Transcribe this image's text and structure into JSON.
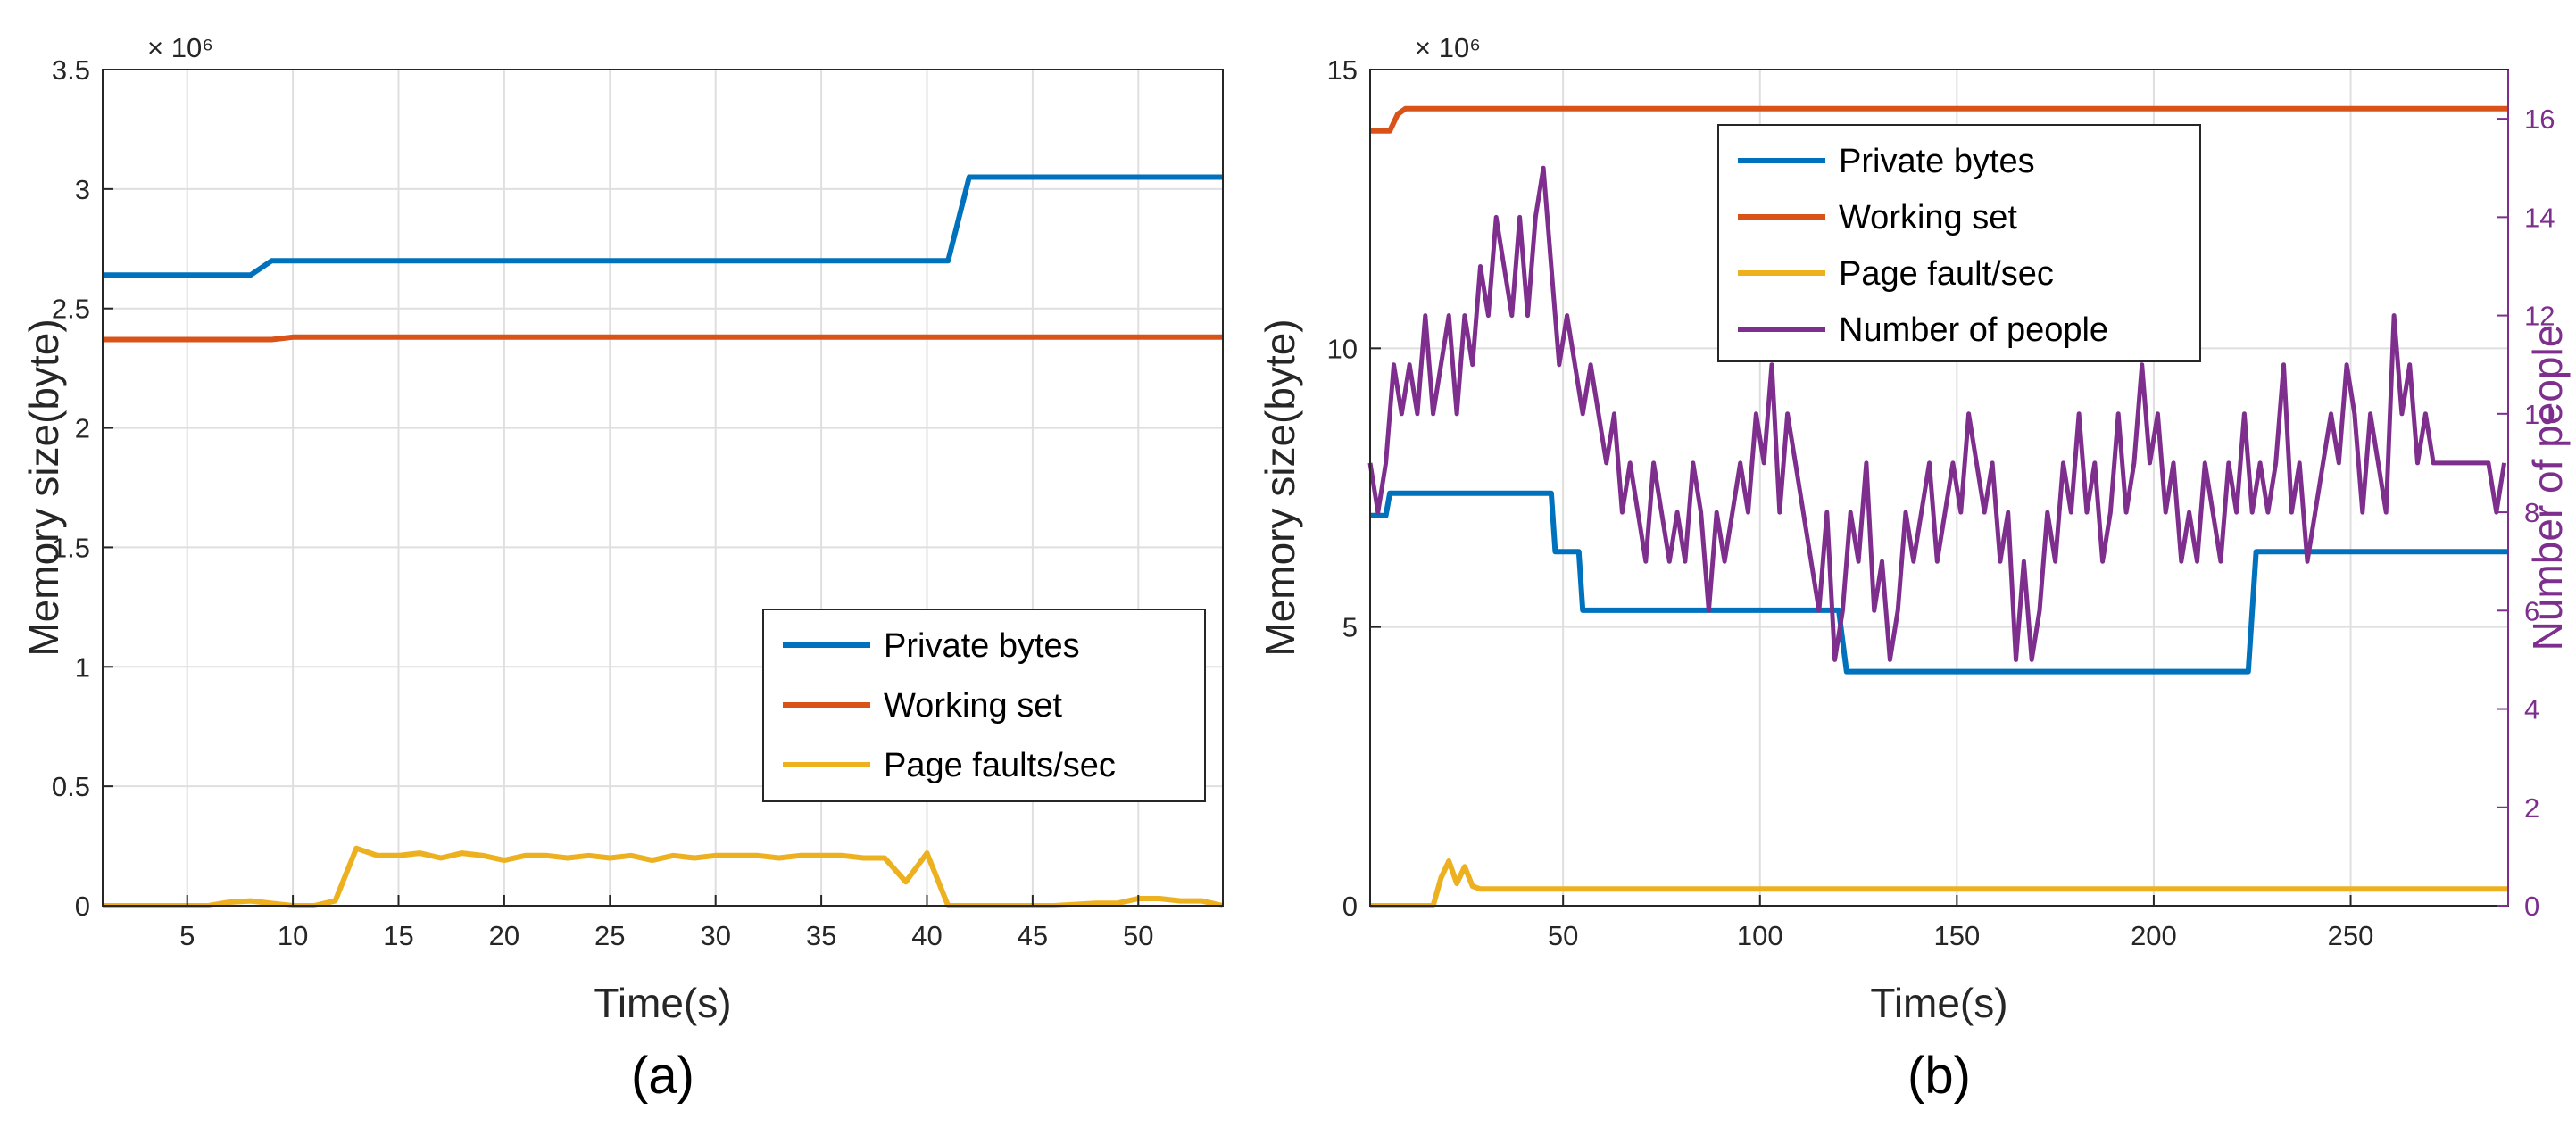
{
  "chart_data": [
    {
      "panel_label": "(a)",
      "type": "line",
      "title": "",
      "xlabel": "Time(s)",
      "ylabel": "Memory size(byte)",
      "exponent_label": "× 10⁶",
      "xlim": [
        1,
        54
      ],
      "ylim": [
        0,
        3.5
      ],
      "grid": true,
      "xticks": [
        5,
        10,
        15,
        20,
        25,
        30,
        35,
        40,
        45,
        50
      ],
      "yticks": [
        0,
        0.5,
        1,
        1.5,
        2,
        2.5,
        3,
        3.5
      ],
      "ytick_labels": [
        "0",
        "0.5",
        "1",
        "1.5",
        "2",
        "2.5",
        "3",
        "3.5"
      ],
      "legend_position": "lower-right",
      "series": [
        {
          "name": "Private bytes",
          "color": "#0072bd",
          "points": [
            [
              1,
              2.64
            ],
            [
              8,
              2.64
            ],
            [
              9,
              2.7
            ],
            [
              41,
              2.7
            ],
            [
              42,
              3.05
            ],
            [
              54,
              3.05
            ]
          ]
        },
        {
          "name": "Working set",
          "color": "#d95319",
          "points": [
            [
              1,
              2.37
            ],
            [
              9,
              2.37
            ],
            [
              10,
              2.38
            ],
            [
              54,
              2.38
            ]
          ]
        },
        {
          "name": "Page faults/sec",
          "color": "#edb120",
          "points": [
            [
              1,
              0
            ],
            [
              6,
              0
            ],
            [
              7,
              0.015
            ],
            [
              8,
              0.02
            ],
            [
              9,
              0.01
            ],
            [
              10,
              0
            ],
            [
              11,
              0
            ],
            [
              12,
              0.02
            ],
            [
              13,
              0.24
            ],
            [
              14,
              0.21
            ],
            [
              15,
              0.21
            ],
            [
              16,
              0.22
            ],
            [
              17,
              0.2
            ],
            [
              18,
              0.22
            ],
            [
              19,
              0.21
            ],
            [
              20,
              0.19
            ],
            [
              21,
              0.21
            ],
            [
              22,
              0.21
            ],
            [
              23,
              0.2
            ],
            [
              24,
              0.21
            ],
            [
              25,
              0.2
            ],
            [
              26,
              0.21
            ],
            [
              27,
              0.19
            ],
            [
              28,
              0.21
            ],
            [
              29,
              0.2
            ],
            [
              30,
              0.21
            ],
            [
              31,
              0.21
            ],
            [
              32,
              0.21
            ],
            [
              33,
              0.2
            ],
            [
              34,
              0.21
            ],
            [
              35,
              0.21
            ],
            [
              36,
              0.21
            ],
            [
              37,
              0.2
            ],
            [
              38,
              0.2
            ],
            [
              39,
              0.1
            ],
            [
              40,
              0.22
            ],
            [
              41,
              0.0
            ],
            [
              42,
              0
            ],
            [
              46,
              0
            ],
            [
              48,
              0.01
            ],
            [
              49,
              0.01
            ],
            [
              50,
              0.03
            ],
            [
              51,
              0.03
            ],
            [
              52,
              0.02
            ],
            [
              53,
              0.02
            ],
            [
              54,
              0
            ]
          ]
        }
      ]
    },
    {
      "panel_label": "(b)",
      "type": "line",
      "title": "",
      "xlabel": "Time(s)",
      "ylabel": "Memory size(byte)",
      "y2label": "Number of people",
      "exponent_label": "× 10⁶",
      "xlim": [
        1,
        290
      ],
      "ylim": [
        0,
        15
      ],
      "y2lim": [
        0,
        17
      ],
      "grid": true,
      "xticks": [
        50,
        100,
        150,
        200,
        250
      ],
      "yticks": [
        0,
        5,
        10,
        15
      ],
      "y2ticks": [
        0,
        2,
        4,
        6,
        8,
        10,
        12,
        14,
        16
      ],
      "legend_position": "top-center",
      "series": [
        {
          "name": "Private bytes",
          "color": "#0072bd",
          "axis": "left",
          "points": [
            [
              1,
              7.0
            ],
            [
              5,
              7.0
            ],
            [
              6,
              7.4
            ],
            [
              47,
              7.4
            ],
            [
              48,
              6.35
            ],
            [
              54,
              6.35
            ],
            [
              55,
              5.3
            ],
            [
              120,
              5.3
            ],
            [
              122,
              4.2
            ],
            [
              224,
              4.2
            ],
            [
              226,
              6.35
            ],
            [
              290,
              6.35
            ]
          ]
        },
        {
          "name": "Working set",
          "color": "#d95319",
          "axis": "left",
          "points": [
            [
              1,
              13.9
            ],
            [
              6,
              13.9
            ],
            [
              8,
              14.2
            ],
            [
              10,
              14.3
            ],
            [
              290,
              14.3
            ]
          ]
        },
        {
          "name": "Page fault/sec",
          "color": "#edb120",
          "axis": "left",
          "points": [
            [
              1,
              0
            ],
            [
              17,
              0
            ],
            [
              19,
              0.5
            ],
            [
              21,
              0.8
            ],
            [
              23,
              0.4
            ],
            [
              25,
              0.7
            ],
            [
              27,
              0.35
            ],
            [
              29,
              0.3
            ],
            [
              290,
              0.3
            ]
          ]
        },
        {
          "name": "Number of people",
          "color": "#7e2f8e",
          "axis": "right",
          "points": [
            [
              1,
              9
            ],
            [
              3,
              8
            ],
            [
              5,
              9
            ],
            [
              7,
              11
            ],
            [
              9,
              10
            ],
            [
              11,
              11
            ],
            [
              13,
              10
            ],
            [
              15,
              12
            ],
            [
              17,
              10
            ],
            [
              19,
              11
            ],
            [
              21,
              12
            ],
            [
              23,
              10
            ],
            [
              25,
              12
            ],
            [
              27,
              11
            ],
            [
              29,
              13
            ],
            [
              31,
              12
            ],
            [
              33,
              14
            ],
            [
              35,
              13
            ],
            [
              37,
              12
            ],
            [
              39,
              14
            ],
            [
              41,
              12
            ],
            [
              43,
              14
            ],
            [
              45,
              15
            ],
            [
              47,
              13
            ],
            [
              49,
              11
            ],
            [
              51,
              12
            ],
            [
              53,
              11
            ],
            [
              55,
              10
            ],
            [
              57,
              11
            ],
            [
              59,
              10
            ],
            [
              61,
              9
            ],
            [
              63,
              10
            ],
            [
              65,
              8
            ],
            [
              67,
              9
            ],
            [
              69,
              8
            ],
            [
              71,
              7
            ],
            [
              73,
              9
            ],
            [
              75,
              8
            ],
            [
              77,
              7
            ],
            [
              79,
              8
            ],
            [
              81,
              7
            ],
            [
              83,
              9
            ],
            [
              85,
              8
            ],
            [
              87,
              6
            ],
            [
              89,
              8
            ],
            [
              91,
              7
            ],
            [
              93,
              8
            ],
            [
              95,
              9
            ],
            [
              97,
              8
            ],
            [
              99,
              10
            ],
            [
              101,
              9
            ],
            [
              103,
              11
            ],
            [
              105,
              8
            ],
            [
              107,
              10
            ],
            [
              109,
              9
            ],
            [
              111,
              8
            ],
            [
              113,
              7
            ],
            [
              115,
              6
            ],
            [
              117,
              8
            ],
            [
              119,
              5
            ],
            [
              121,
              6
            ],
            [
              123,
              8
            ],
            [
              125,
              7
            ],
            [
              127,
              9
            ],
            [
              129,
              6
            ],
            [
              131,
              7
            ],
            [
              133,
              5
            ],
            [
              135,
              6
            ],
            [
              137,
              8
            ],
            [
              139,
              7
            ],
            [
              141,
              8
            ],
            [
              143,
              9
            ],
            [
              145,
              7
            ],
            [
              147,
              8
            ],
            [
              149,
              9
            ],
            [
              151,
              8
            ],
            [
              153,
              10
            ],
            [
              155,
              9
            ],
            [
              157,
              8
            ],
            [
              159,
              9
            ],
            [
              161,
              7
            ],
            [
              163,
              8
            ],
            [
              165,
              5
            ],
            [
              167,
              7
            ],
            [
              169,
              5
            ],
            [
              171,
              6
            ],
            [
              173,
              8
            ],
            [
              175,
              7
            ],
            [
              177,
              9
            ],
            [
              179,
              8
            ],
            [
              181,
              10
            ],
            [
              183,
              8
            ],
            [
              185,
              9
            ],
            [
              187,
              7
            ],
            [
              189,
              8
            ],
            [
              191,
              10
            ],
            [
              193,
              8
            ],
            [
              195,
              9
            ],
            [
              197,
              11
            ],
            [
              199,
              9
            ],
            [
              201,
              10
            ],
            [
              203,
              8
            ],
            [
              205,
              9
            ],
            [
              207,
              7
            ],
            [
              209,
              8
            ],
            [
              211,
              7
            ],
            [
              213,
              9
            ],
            [
              215,
              8
            ],
            [
              217,
              7
            ],
            [
              219,
              9
            ],
            [
              221,
              8
            ],
            [
              223,
              10
            ],
            [
              225,
              8
            ],
            [
              227,
              9
            ],
            [
              229,
              8
            ],
            [
              231,
              9
            ],
            [
              233,
              11
            ],
            [
              235,
              8
            ],
            [
              237,
              9
            ],
            [
              239,
              7
            ],
            [
              241,
              8
            ],
            [
              243,
              9
            ],
            [
              245,
              10
            ],
            [
              247,
              9
            ],
            [
              249,
              11
            ],
            [
              251,
              10
            ],
            [
              253,
              8
            ],
            [
              255,
              10
            ],
            [
              257,
              9
            ],
            [
              259,
              8
            ],
            [
              261,
              12
            ],
            [
              263,
              10
            ],
            [
              265,
              11
            ],
            [
              267,
              9
            ],
            [
              269,
              10
            ],
            [
              271,
              9
            ],
            [
              273,
              9
            ],
            [
              275,
              9
            ],
            [
              277,
              9
            ],
            [
              279,
              9
            ],
            [
              281,
              9
            ],
            [
              283,
              9
            ],
            [
              285,
              9
            ],
            [
              287,
              8
            ],
            [
              289,
              9
            ]
          ]
        }
      ]
    }
  ]
}
